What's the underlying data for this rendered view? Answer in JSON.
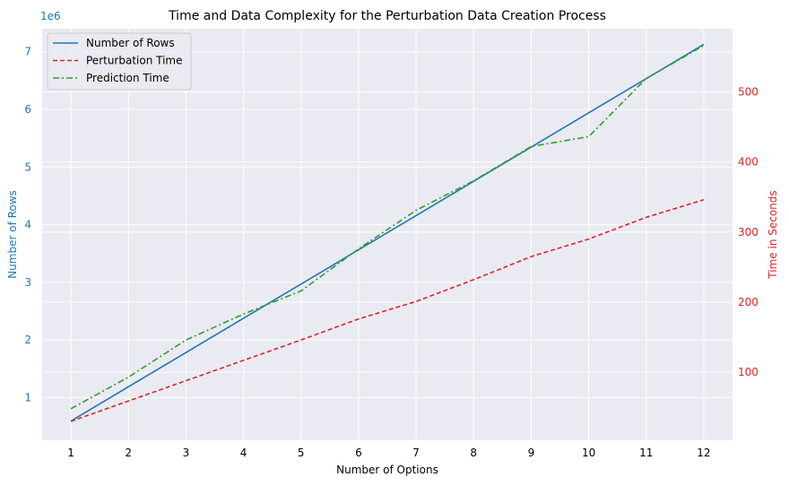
{
  "chart_data": {
    "type": "line",
    "title": "Time and Data Complexity for the Perturbation Data Creation Process",
    "xlabel": "Number of Options",
    "ylabel_left": "Number of Rows",
    "ylabel_right": "Time in Seconds",
    "left_axis_offset_label": "1e6",
    "x": [
      1,
      2,
      3,
      4,
      5,
      6,
      7,
      8,
      9,
      10,
      11,
      12
    ],
    "x_ticks": [
      "1",
      "2",
      "3",
      "4",
      "5",
      "6",
      "7",
      "8",
      "9",
      "10",
      "11",
      "12"
    ],
    "xlim": [
      0.5,
      12.5
    ],
    "ylim_left": [
      0.26,
      7.4
    ],
    "ylim_right": [
      3,
      590
    ],
    "y_ticks_left": [
      "1",
      "2",
      "3",
      "4",
      "5",
      "6",
      "7"
    ],
    "y_ticks_right": [
      "100",
      "200",
      "300",
      "400",
      "500"
    ],
    "grid": true,
    "legend_position": "top-left",
    "series": [
      {
        "name": "Number of Rows",
        "axis": "left",
        "color": "#1f77b4",
        "style": "solid",
        "values": [
          0.594,
          1.188,
          1.782,
          2.376,
          2.97,
          3.564,
          4.158,
          4.752,
          5.346,
          5.94,
          6.534,
          7.128
        ]
      },
      {
        "name": "Perturbation Time",
        "axis": "right",
        "color": "#d62728",
        "style": "dashed",
        "values": [
          30,
          59,
          88,
          117,
          146,
          176,
          201,
          232,
          265,
          290,
          321,
          346
        ]
      },
      {
        "name": "Prediction Time",
        "axis": "right",
        "color": "#2ca02c",
        "style": "dashdot",
        "values": [
          48,
          93,
          146,
          183,
          216,
          276,
          331,
          373,
          422,
          436,
          519,
          566
        ]
      }
    ],
    "colors": {
      "plot_background": "#eaeaf2",
      "grid": "#ffffff",
      "left_axis": "#1f77b4",
      "right_axis": "#d62728"
    }
  }
}
